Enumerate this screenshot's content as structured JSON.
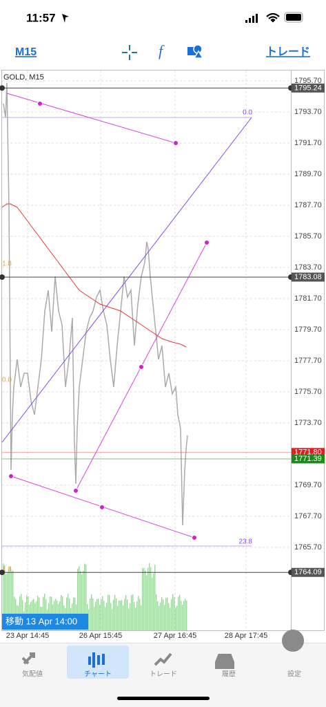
{
  "status_bar": {
    "time": "11:57"
  },
  "toolbar": {
    "timeframe": "M15",
    "trade": "トレード"
  },
  "chart": {
    "symbol": "GOLD, M15",
    "price_ticks": [
      "1795.70",
      "1793.70",
      "1791.70",
      "1789.70",
      "1787.70",
      "1785.70",
      "1783.70",
      "1781.70",
      "1779.70",
      "1777.70",
      "1775.70",
      "1773.70",
      "1769.70",
      "1767.70",
      "1765.70"
    ],
    "price_markers": [
      {
        "label": "1795.24",
        "kind": "line"
      },
      {
        "label": "1783.08",
        "kind": "line"
      },
      {
        "label": "1771.80",
        "kind": "ask"
      },
      {
        "label": "1771.39",
        "kind": "bid"
      },
      {
        "label": "1764.09",
        "kind": "line"
      }
    ],
    "fib_labels": {
      "top": "0.0",
      "bottom": "23.8",
      "left": [
        "1.8",
        "0.0",
        "1.8"
      ]
    },
    "time_labels": [
      "23 Apr 14:45",
      "26 Apr 15:45",
      "27 Apr 16:45",
      "28 Apr 17:45"
    ],
    "tooltip": "移動 13 Apr 14:00"
  },
  "tab_bar": {
    "tabs": [
      "気配値",
      "チャート",
      "トレード",
      "履歴",
      "設定"
    ],
    "active": 1
  }
}
